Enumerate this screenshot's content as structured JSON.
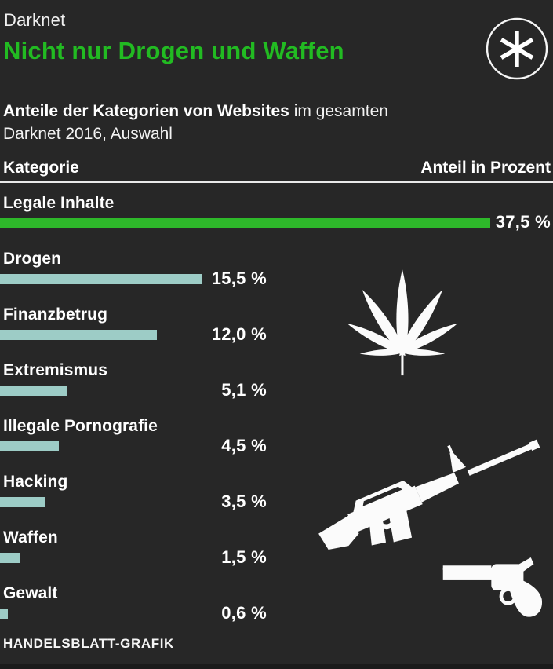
{
  "header": {
    "kicker": "Darknet",
    "title": "Nicht nur Drogen und Waffen",
    "logo_icon": "handelsblatt-asterisk-icon"
  },
  "subtitle": {
    "bold": "Anteile der Kategorien von Websites",
    "rest": " im gesamten",
    "line2": "Darknet 2016, Auswahl"
  },
  "table_header": {
    "left": "Kategorie",
    "right": "Anteil in Prozent"
  },
  "chart_data": {
    "type": "bar",
    "orientation": "horizontal",
    "title": "Anteile der Kategorien von Websites im gesamten Darknet 2016, Auswahl",
    "categories": [
      "Legale Inhalte",
      "Drogen",
      "Finanzbetrug",
      "Extremismus",
      "Illegale Pornografie",
      "Hacking",
      "Waffen",
      "Gewalt"
    ],
    "values": [
      37.5,
      15.5,
      12.0,
      5.1,
      4.5,
      3.5,
      1.5,
      0.6
    ],
    "value_labels": [
      "37,5 %",
      "15,5 %",
      "12,0 %",
      "5,1 %",
      "4,5 %",
      "3,5 %",
      "1,5 %",
      "0,6 %"
    ],
    "unit": "%",
    "xlim": [
      0,
      37.5
    ],
    "grid": false,
    "legend": false,
    "highlight_index": 0,
    "bar_colors": {
      "highlight": "#2eb82a",
      "default": "#9dccc6"
    },
    "icons": [
      "cannabis-leaf-icon",
      "rifle-icon",
      "revolver-icon"
    ]
  },
  "footer": {
    "credit": "HANDELSBLATT-GRAFIK"
  },
  "colors": {
    "background": "#272727",
    "accent_green": "#22bb22",
    "bar_teal": "#9dccc6",
    "text": "#ffffff",
    "footer_strip": "#1b1b1b"
  }
}
